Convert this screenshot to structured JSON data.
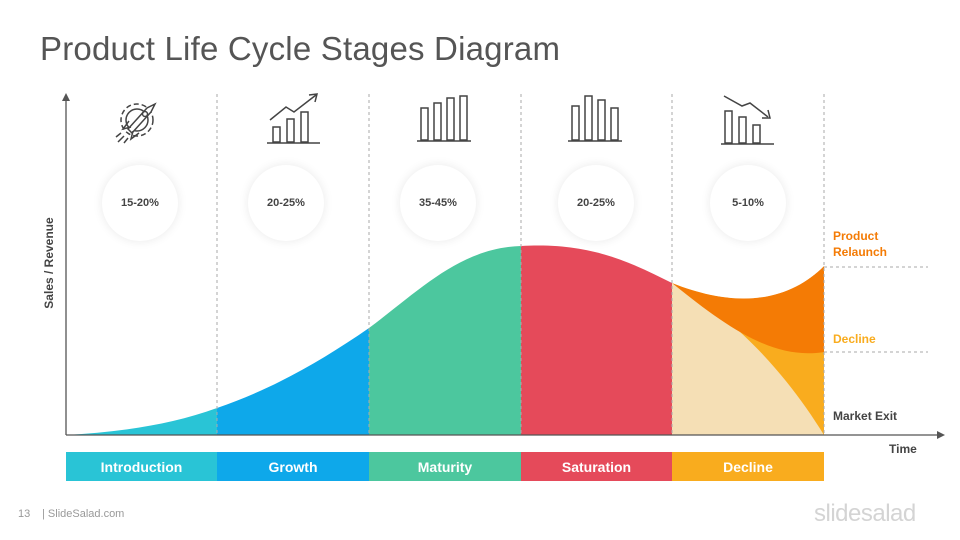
{
  "title": "Product Life Cycle Stages Diagram",
  "axis": {
    "y_label": "Sales / Revenue",
    "x_label": "Time"
  },
  "stages": [
    {
      "name": "Introduction",
      "percent": "15-20%",
      "color": "#29c4d6",
      "icon": "rocket-gear-icon"
    },
    {
      "name": "Growth",
      "percent": "20-25%",
      "color": "#0ea8ea",
      "icon": "rising-bar-chart-icon"
    },
    {
      "name": "Maturity",
      "percent": "35-45%",
      "color": "#4cc79e",
      "icon": "bar-chart-icon"
    },
    {
      "name": "Saturation",
      "percent": "20-25%",
      "color": "#e54a5a",
      "icon": "peaked-bar-chart-icon"
    },
    {
      "name": "Decline",
      "percent": "5-10%",
      "color": "#f9ac1e",
      "icon": "falling-bar-chart-icon"
    }
  ],
  "outcomes": {
    "relaunch": {
      "label": "Product Relaunch",
      "color": "#f47b05"
    },
    "decline": {
      "label": "Decline",
      "color": "#f9ac1e"
    },
    "exit": {
      "label": "Market Exit",
      "color": "#444444"
    }
  },
  "footer": {
    "page_number": "13",
    "site": "| SlideSalad.com",
    "logo": "slidesalad"
  }
}
